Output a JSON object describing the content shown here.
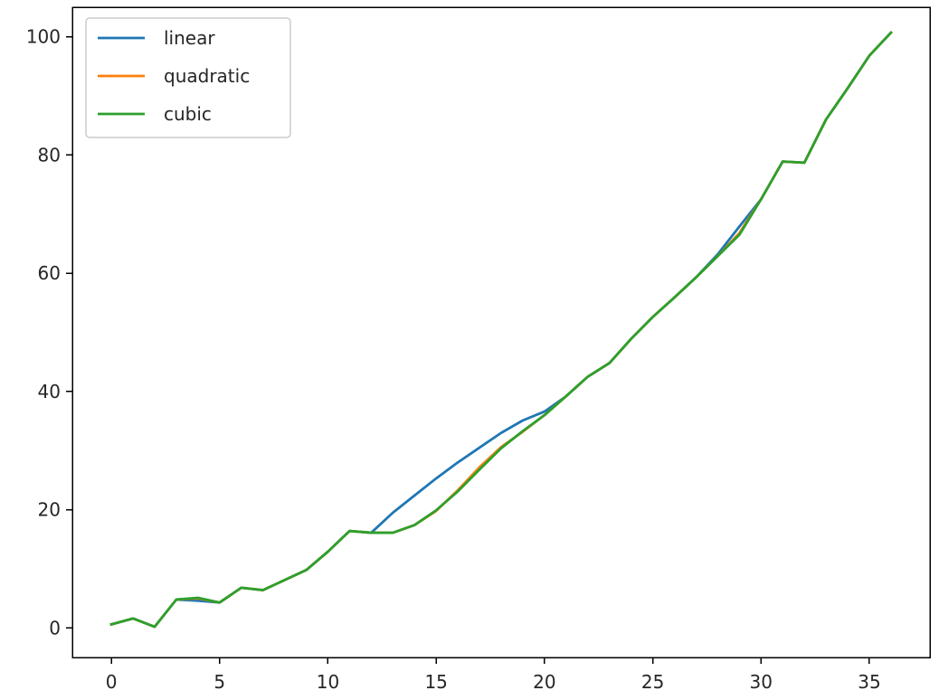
{
  "chart_data": {
    "type": "line",
    "title": "",
    "xlabel": "",
    "ylabel": "",
    "xlim": [
      -1.8,
      37.8
    ],
    "ylim": [
      -5,
      105
    ],
    "xticks": [
      0,
      5,
      10,
      15,
      20,
      25,
      30,
      35
    ],
    "yticks": [
      0,
      20,
      40,
      60,
      80,
      100
    ],
    "grid": false,
    "legend_position": "top-left",
    "series": [
      {
        "name": "linear",
        "color": "#1f77b4",
        "x": [
          0,
          1,
          2,
          3,
          4,
          5,
          6,
          7,
          8,
          9,
          10,
          11,
          12,
          13,
          14,
          15,
          16,
          17,
          18,
          19,
          20,
          21,
          22,
          23,
          24,
          25,
          26,
          27,
          28,
          29,
          30,
          31,
          32,
          33,
          34,
          35,
          36
        ],
        "y": [
          0.6,
          1.6,
          0.2,
          4.8,
          4.6,
          4.3,
          6.8,
          6.4,
          8.1,
          9.8,
          12.9,
          16.4,
          16.1,
          19.5,
          22.4,
          25.3,
          28.0,
          30.5,
          33.0,
          35.1,
          36.6,
          39.2,
          42.5,
          44.8,
          48.9,
          52.6,
          55.9,
          59.3,
          63.2,
          67.9,
          72.5,
          78.9,
          78.7,
          86.0,
          91.3,
          96.8,
          100.7
        ]
      },
      {
        "name": "quadratic",
        "color": "#ff7f0e",
        "x": [
          0,
          1,
          2,
          3,
          4,
          5,
          6,
          7,
          8,
          9,
          10,
          11,
          12,
          13,
          14,
          15,
          16,
          17,
          18,
          19,
          20,
          21,
          22,
          23,
          24,
          25,
          26,
          27,
          28,
          29,
          30,
          31,
          32,
          33,
          34,
          35,
          36
        ],
        "y": [
          0.6,
          1.6,
          0.2,
          4.8,
          5.0,
          4.3,
          6.8,
          6.4,
          8.1,
          9.8,
          12.9,
          16.4,
          16.1,
          16.1,
          17.4,
          19.8,
          23.3,
          27.2,
          30.6,
          33.2,
          36.0,
          39.2,
          42.5,
          44.8,
          48.9,
          52.6,
          55.9,
          59.3,
          62.9,
          66.8,
          72.5,
          78.9,
          78.7,
          86.0,
          91.3,
          96.8,
          100.7
        ]
      },
      {
        "name": "cubic",
        "color": "#2ca02c",
        "x": [
          0,
          1,
          2,
          3,
          4,
          5,
          6,
          7,
          8,
          9,
          10,
          11,
          12,
          13,
          14,
          15,
          16,
          17,
          18,
          19,
          20,
          21,
          22,
          23,
          24,
          25,
          26,
          27,
          28,
          29,
          30,
          31,
          32,
          33,
          34,
          35,
          36
        ],
        "y": [
          0.6,
          1.6,
          0.2,
          4.8,
          5.1,
          4.3,
          6.8,
          6.4,
          8.1,
          9.8,
          12.9,
          16.4,
          16.1,
          16.1,
          17.4,
          19.9,
          23.1,
          26.8,
          30.4,
          33.3,
          36.0,
          39.2,
          42.5,
          44.8,
          48.9,
          52.6,
          55.9,
          59.3,
          62.9,
          66.5,
          72.5,
          78.9,
          78.7,
          86.0,
          91.3,
          96.8,
          100.7
        ]
      }
    ]
  }
}
